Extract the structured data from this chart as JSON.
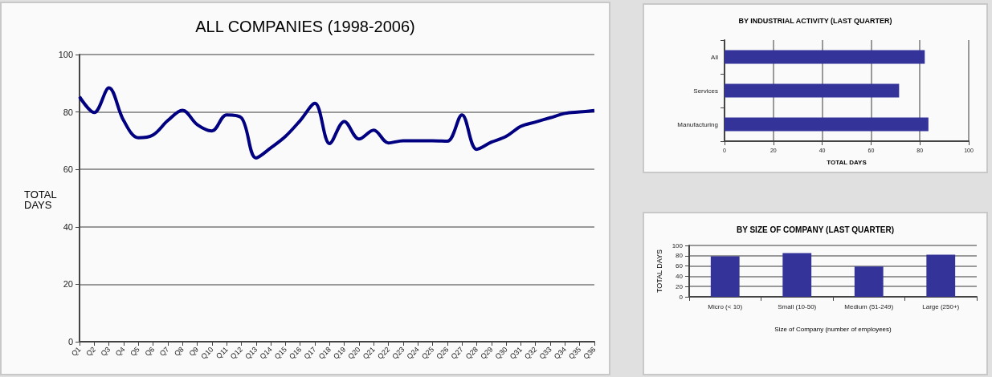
{
  "chart_data": [
    {
      "type": "line",
      "title": "ALL COMPANIES (1998-2006)",
      "ylabel": "TOTAL DAYS",
      "categories": [
        "Q1",
        "Q2",
        "Q3",
        "Q4",
        "Q5",
        "Q6",
        "Q7",
        "Q8",
        "Q9",
        "Q10",
        "Q11",
        "Q12",
        "Q13",
        "Q14",
        "Q15",
        "Q16",
        "Q17",
        "Q18",
        "Q19",
        "Q20",
        "Q21",
        "Q22",
        "Q23",
        "Q24",
        "Q25",
        "Q26",
        "Q27",
        "Q28",
        "Q29",
        "Q30",
        "Q31",
        "Q32",
        "Q33",
        "Q34",
        "Q35",
        "Q36"
      ],
      "values": [
        85.3,
        79.8,
        88.4,
        77,
        71,
        72,
        77,
        80.6,
        75.6,
        73.4,
        79,
        78,
        64,
        67.5,
        71.5,
        77,
        83,
        69,
        76.7,
        70.6,
        73.7,
        69.2,
        70,
        70,
        70,
        69.8,
        79,
        67,
        69.5,
        71.5,
        75,
        76.5,
        78,
        79.5,
        80,
        80.5
      ],
      "color": "#000080",
      "ylim": [
        0,
        100
      ],
      "yticks": [
        0,
        20,
        40,
        60,
        80,
        100
      ],
      "grid": "y",
      "marker": "none"
    },
    {
      "type": "bar",
      "orientation": "horizontal",
      "title": "BY INDUSTRIAL ACTIVITY (LAST QUARTER)",
      "xlabel": "TOTAL DAYS",
      "categories": [
        "All",
        "Services",
        "Manufacturing"
      ],
      "values": [
        82,
        71.5,
        83.5
      ],
      "color": "#333399",
      "xlim": [
        0,
        100
      ],
      "xticks": [
        0,
        20,
        40,
        60,
        80,
        100
      ],
      "grid": "x"
    },
    {
      "type": "bar",
      "title": "BY SIZE OF COMPANY (LAST QUARTER)",
      "xlabel": "Size of Company (number of employees)",
      "ylabel": "TOTAL DAYS",
      "categories": [
        "Micro (< 10)",
        "Small (10-50)",
        "Medium (51-249)",
        "Large (250+)"
      ],
      "values": [
        79,
        85,
        59,
        82
      ],
      "color": "#333399",
      "ylim": [
        0,
        100
      ],
      "yticks": [
        0,
        20,
        40,
        60,
        80,
        100
      ],
      "grid": "y"
    }
  ]
}
